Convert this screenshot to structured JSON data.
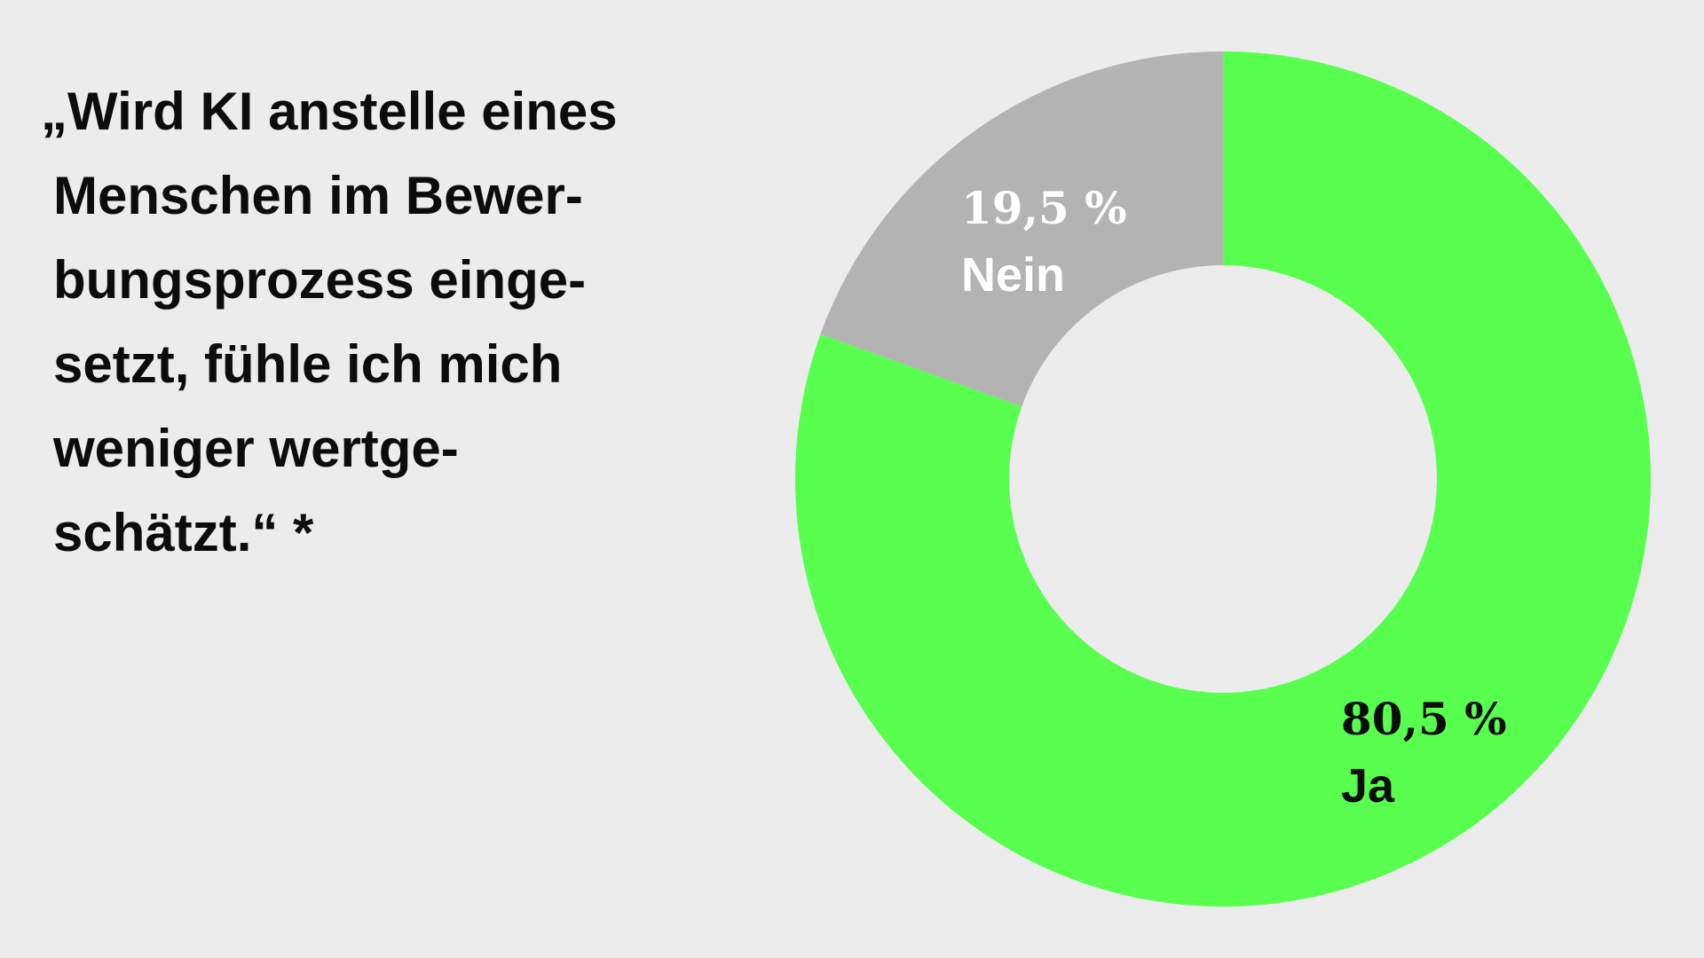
{
  "title_lines": [
    "„Wird KI anstelle eines",
    "Menschen im Bewer-",
    "bungsprozess einge-",
    "setzt, fühle ich mich",
    "weniger wertge-",
    "schätzt.“ *"
  ],
  "colors": {
    "background": "#ececec",
    "ja": "#58ff4e",
    "nein": "#b3b3b3",
    "hole": "#ececec"
  },
  "chart_data": {
    "type": "pie",
    "variant": "donut",
    "title": "„Wird KI anstelle eines Menschen im Bewerbungsprozess eingesetzt, fühle ich mich weniger wertgeschätzt.“ *",
    "slices": [
      {
        "label": "Ja",
        "value": 80.5,
        "display": "80,5 %",
        "color": "#58ff4e"
      },
      {
        "label": "Nein",
        "value": 19.5,
        "display": "19,5 %",
        "color": "#b3b3b3"
      }
    ],
    "start": "12 o'clock",
    "direction": "clockwise",
    "legend": "none"
  }
}
